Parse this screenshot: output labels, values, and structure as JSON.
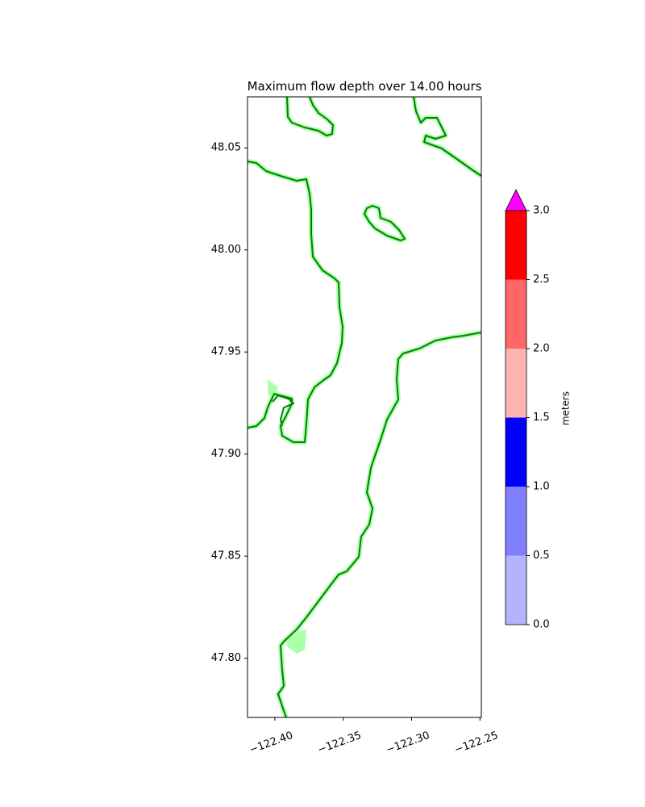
{
  "chart_data": {
    "type": "map",
    "title": "Maximum flow depth over 14.00 hours",
    "xlim": [
      -122.42,
      -122.249
    ],
    "ylim": [
      47.771,
      48.075
    ],
    "xticks": [
      {
        "value": -122.4,
        "label": "−122.40"
      },
      {
        "value": -122.35,
        "label": "−122.35"
      },
      {
        "value": -122.3,
        "label": "−122.30"
      },
      {
        "value": -122.25,
        "label": "−122.25"
      }
    ],
    "yticks": [
      {
        "value": 47.8,
        "label": "47.80"
      },
      47.85,
      {
        "value": 47.9,
        "label": "47.90"
      },
      47.95,
      {
        "value": 48,
        "label": "48.00"
      },
      48.05
    ],
    "colorbar": {
      "label": "meters",
      "ticks": [
        {
          "value": 0,
          "label": "0.0"
        },
        {
          "value": 0.5,
          "label": "0.5"
        },
        {
          "value": 1,
          "label": "1.0"
        },
        {
          "value": 1.5,
          "label": "1.5"
        },
        {
          "value": 2,
          "label": "2.0"
        },
        {
          "value": 2.5,
          "label": "2.5"
        },
        {
          "value": 3,
          "label": "3.0"
        }
      ],
      "colors": [
        "#b3b3ff",
        "#8080ff",
        "#0000ff",
        "#ffb3b3",
        "#ff6666",
        "#ff0000"
      ],
      "extend_color": "#ff00ff"
    }
  }
}
